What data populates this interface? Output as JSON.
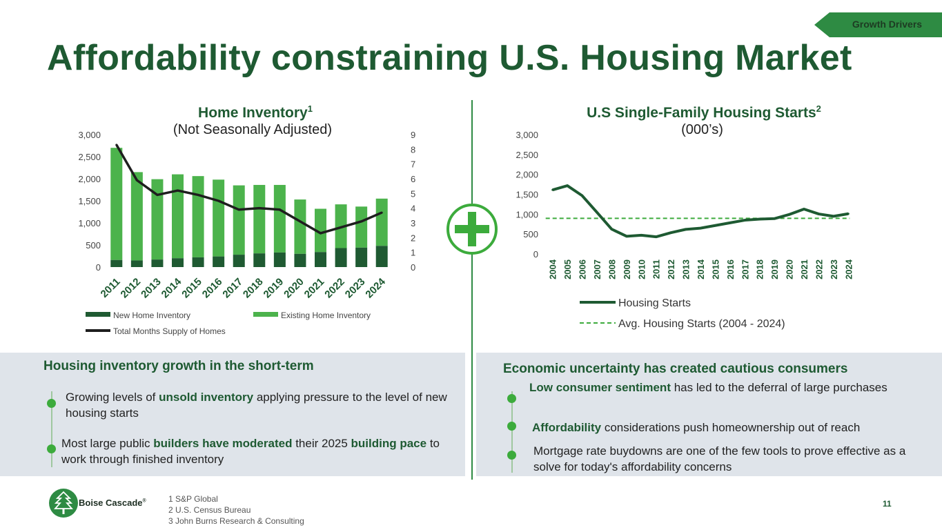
{
  "tag": "Growth Drivers",
  "title": "Affordability constraining U.S. Housing Market",
  "left_chart": {
    "title": "Home Inventory",
    "sup": "1",
    "subtitle": "(Not Seasonally Adjusted)"
  },
  "right_chart": {
    "title": "U.S Single-Family Housing Starts",
    "sup": "2",
    "subtitle": "(000’s)"
  },
  "chart_data": [
    {
      "type": "bar",
      "title": "Home Inventory (Not Seasonally Adjusted)",
      "categories": [
        "2011",
        "2012",
        "2013",
        "2014",
        "2015",
        "2016",
        "2017",
        "2018",
        "2019",
        "2020",
        "2021",
        "2022",
        "2023",
        "2024"
      ],
      "stacked": true,
      "series": [
        {
          "name": "New Home Inventory",
          "values": [
            160,
            150,
            170,
            200,
            220,
            240,
            280,
            310,
            330,
            300,
            340,
            430,
            440,
            480
          ]
        },
        {
          "name": "Existing Home Inventory",
          "values": [
            2540,
            2000,
            1820,
            1900,
            1840,
            1740,
            1570,
            1550,
            1530,
            1230,
            980,
            990,
            930,
            1070
          ]
        },
        {
          "name": "Total Months Supply of Homes",
          "axis": "secondary",
          "line": true,
          "values": [
            8.3,
            5.9,
            4.9,
            5.2,
            4.9,
            4.5,
            3.9,
            4.0,
            3.9,
            3.1,
            2.3,
            2.7,
            3.1,
            3.7
          ]
        }
      ],
      "ylim": [
        0,
        3000
      ],
      "yticks": [
        "3,000",
        "2,500",
        "2,000",
        "1,500",
        "1,000",
        "500",
        "0"
      ],
      "y2lim": [
        0,
        9
      ],
      "y2ticks": [
        "9",
        "8",
        "7",
        "6",
        "5",
        "4",
        "3",
        "2",
        "1",
        "0"
      ],
      "legend": [
        "New Home Inventory",
        "Existing Home Inventory",
        "Total Months Supply of Homes"
      ]
    },
    {
      "type": "line",
      "title": "U.S Single-Family Housing Starts (000’s)",
      "x": [
        "2004",
        "2005",
        "2006",
        "2007",
        "2008",
        "2009",
        "2010",
        "2011",
        "2012",
        "2013",
        "2014",
        "2015",
        "2016",
        "2017",
        "2018",
        "2019",
        "2020",
        "2021",
        "2022",
        "2023",
        "2024"
      ],
      "series": [
        {
          "name": "Housing Starts",
          "values": [
            1610,
            1716,
            1465,
            1046,
            622,
            445,
            471,
            431,
            535,
            618,
            648,
            715,
            782,
            849,
            876,
            888,
            991,
            1127,
            1005,
            947,
            1010
          ]
        },
        {
          "name": "Avg. Housing Starts (2004 - 2024)",
          "dashed": true,
          "values": [
            896,
            896,
            896,
            896,
            896,
            896,
            896,
            896,
            896,
            896,
            896,
            896,
            896,
            896,
            896,
            896,
            896,
            896,
            896,
            896,
            896
          ]
        }
      ],
      "ylim": [
        0,
        3000
      ],
      "yticks": [
        "3,000",
        "2,500",
        "2,000",
        "1,500",
        "1,000",
        "500",
        "0"
      ],
      "legend": [
        "Housing Starts",
        "Avg. Housing Starts (2004 - 2024)"
      ]
    }
  ],
  "left_panel": {
    "heading": "Housing inventory growth in the short-term",
    "b1_pre": "Growing levels of ",
    "b1_bold": "unsold inventory",
    "b1_post": " applying pressure to the level of new housing starts",
    "b2_pre": "Most large public ",
    "b2_bold1": "builders have moderated",
    "b2_mid": " their 2025 ",
    "b2_bold2": "building pace",
    "b2_post": " to work through finished inventory"
  },
  "right_panel": {
    "heading": "Economic uncertainty has created cautious consumers",
    "b1_bold": "Low consumer sentiment",
    "b1_post": " has led to the deferral of large purchases",
    "b2_bold": "Affordability",
    "b2_post": " considerations push homeownership out of reach",
    "b3": "Mortgage rate buydowns are one of the few tools to prove effective as a solve for today's affordability concerns"
  },
  "logo": {
    "name": "Boise Cascade",
    "mark": "®"
  },
  "footnotes": [
    "1 S&P Global",
    "2 U.S. Census Bureau",
    "3 John Burns Research & Consulting"
  ],
  "page_number": "11",
  "colors": {
    "dark_green": "#1e5a32",
    "bar_dark": "#1f5a32",
    "bar_light": "#4cb34c",
    "line": "#1e1e1e",
    "accent": "#2e8b43"
  }
}
